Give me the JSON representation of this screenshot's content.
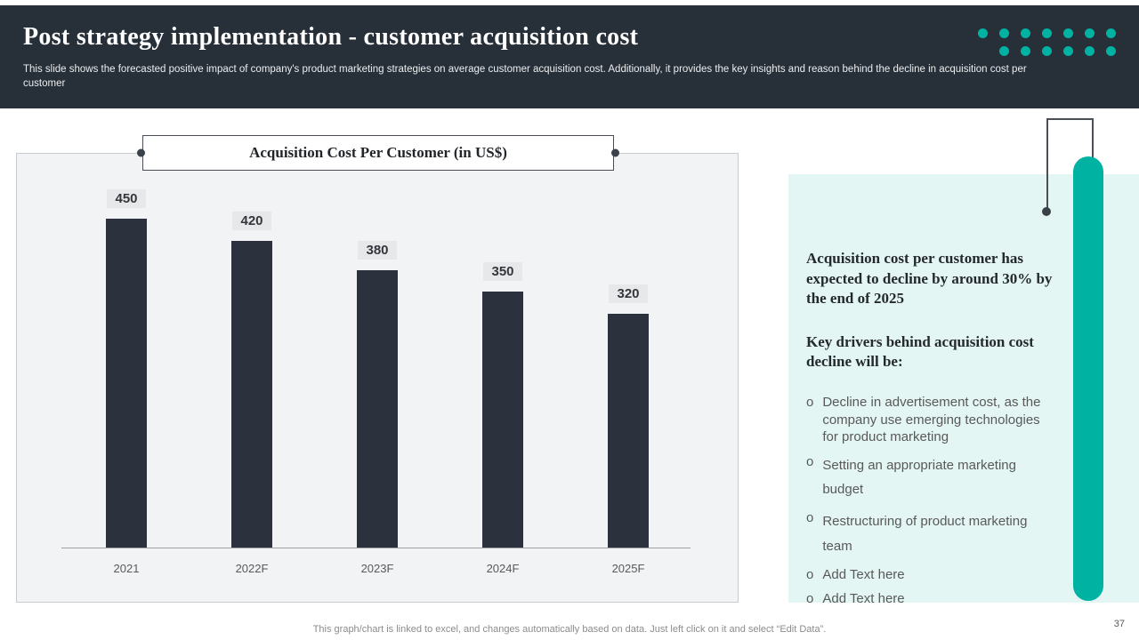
{
  "header": {
    "title": "Post strategy implementation - customer acquisition cost",
    "subtitle": "This slide shows the forecasted positive impact of company's product marketing strategies on average customer acquisition cost. Additionally, it provides the key insights and reason behind the decline in acquisition cost per customer"
  },
  "chart_data": {
    "type": "bar",
    "title": "Acquisition Cost Per Customer (in US$)",
    "categories": [
      "2021",
      "2022F",
      "2023F",
      "2024F",
      "2025F"
    ],
    "values": [
      450,
      420,
      380,
      350,
      320
    ],
    "ylim": [
      0,
      500
    ],
    "grid": false,
    "legend": false,
    "data_labels": true
  },
  "insights": {
    "heading": "Acquisition cost per customer has expected to decline by around 30% by the end of 2025",
    "key_drivers_label": "Key drivers behind acquisition cost decline will be:",
    "bullet_marker": "o",
    "bullets": [
      "Decline in advertisement cost, as the company use emerging technologies for product marketing",
      "Setting an appropriate marketing budget",
      "Restructuring of product marketing team",
      "Add Text here",
      "Add Text here"
    ]
  },
  "footer": {
    "note": "This graph/chart is linked to excel, and changes automatically based on data. Just left click on it and select “Edit Data”.",
    "page_number": "37"
  },
  "colors": {
    "accent_teal": "#00b2a2",
    "header_bg": "#272f39",
    "bar_color": "#2b323d",
    "chart_panel_bg": "#f2f3f4",
    "insight_panel_bg": "#e3f6f4"
  },
  "decor": {
    "dots_rows": [
      7,
      6
    ]
  }
}
